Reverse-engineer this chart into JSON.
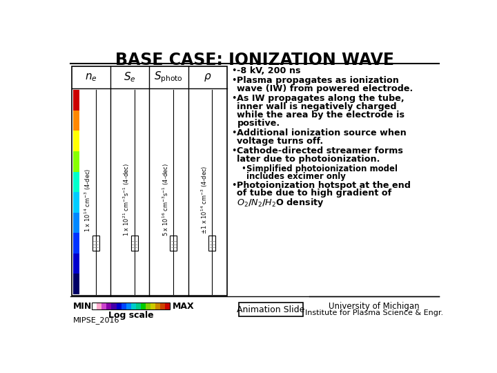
{
  "title": "BASE CASE: IONIZATION WAVE",
  "bg_color": "#ffffff",
  "title_fontsize": 17,
  "col_labels": [
    "$n_e$",
    "$S_e$",
    "$S_{\\rm photo}$",
    "$\\rho$"
  ],
  "col_units": [
    "1 x 10$^{14}$ cm$^{-3}$ (4-dec)",
    "1 x 10$^{21}$ cm$^{-3}$s$^{-1}$ (4-dec)",
    "5 x 10$^{16}$ cm$^{-3}$s$^{-1}$ (4-dec)",
    "$\\pm$1 x 10$^{14}$ cm$^{-3}$ (4-dec)"
  ],
  "bullets": [
    {
      "level": 1,
      "text": "-8 kV, 200 ns"
    },
    {
      "level": 1,
      "text": "Plasma propagates as ionization\nwave (IW) from powered electrode."
    },
    {
      "level": 1,
      "text": "As IW propagates along the tube,\ninner wall is negatively charged\nwhile the area by the electrode is\npositive."
    },
    {
      "level": 1,
      "text": "Additional ionization source when\nvoltage turns off."
    },
    {
      "level": 1,
      "text": "Cathode-directed streamer forms\nlater due to photoionization."
    },
    {
      "level": 2,
      "text": "Simplified photoionization model\nincludes excimer only"
    },
    {
      "level": 1,
      "text": "Photoionization hotspot at the end\nof tube due to high gradient of\n$O_2$/$N_2$/$H_2$O density"
    }
  ],
  "footer_min": "MIN",
  "footer_max": "MAX",
  "footer_scale": "Log scale",
  "footer_mipse": "MIPSE_2016",
  "footer_anim": "Animation Slide",
  "footer_uni1": "University of Michigan",
  "footer_uni2": "Institute for Plasma Science & Engr.",
  "colorbar_colors": [
    "#ffffff",
    "#ffaacc",
    "#cc44cc",
    "#8800aa",
    "#4400aa",
    "#0000cc",
    "#0044ff",
    "#0088ff",
    "#00cccc",
    "#00cc88",
    "#00cc00",
    "#88cc00",
    "#cccc00",
    "#cc8800",
    "#cc4400",
    "#cc0000"
  ],
  "plasma_colors": [
    "#000066",
    "#0000cc",
    "#0033ff",
    "#0088ff",
    "#00ccff",
    "#00ffcc",
    "#88ff00",
    "#ffff00",
    "#ff8800",
    "#cc0000"
  ]
}
